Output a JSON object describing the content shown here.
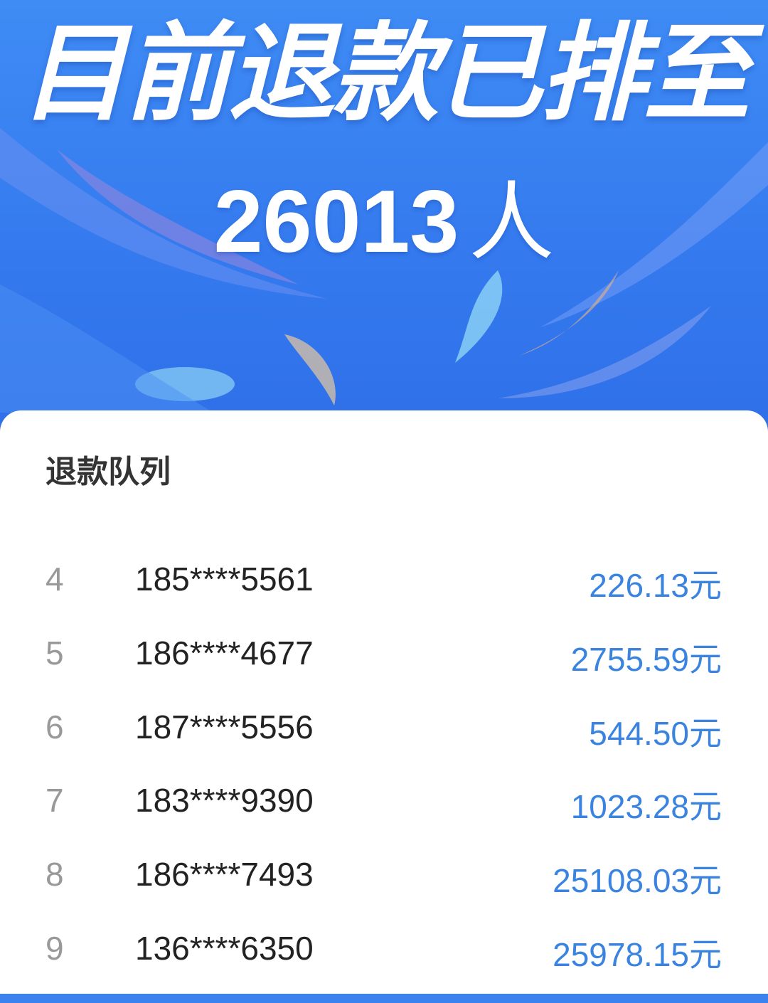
{
  "banner": {
    "title": "目前退款已排至",
    "count": "26013",
    "count_unit": "人"
  },
  "queue": {
    "title": "退款队列",
    "rows": [
      {
        "rank": "4",
        "phone": "185****5561",
        "amount": "226.13元"
      },
      {
        "rank": "5",
        "phone": "186****4677",
        "amount": "2755.59元"
      },
      {
        "rank": "6",
        "phone": "187****5556",
        "amount": "544.50元"
      },
      {
        "rank": "7",
        "phone": "183****9390",
        "amount": "1023.28元"
      },
      {
        "rank": "8",
        "phone": "186****7493",
        "amount": "25108.03元"
      },
      {
        "rank": "9",
        "phone": "136****6350",
        "amount": "25978.15元"
      }
    ]
  },
  "colors": {
    "banner_blue": "#3479ee",
    "amount_blue": "#3a84e0"
  }
}
